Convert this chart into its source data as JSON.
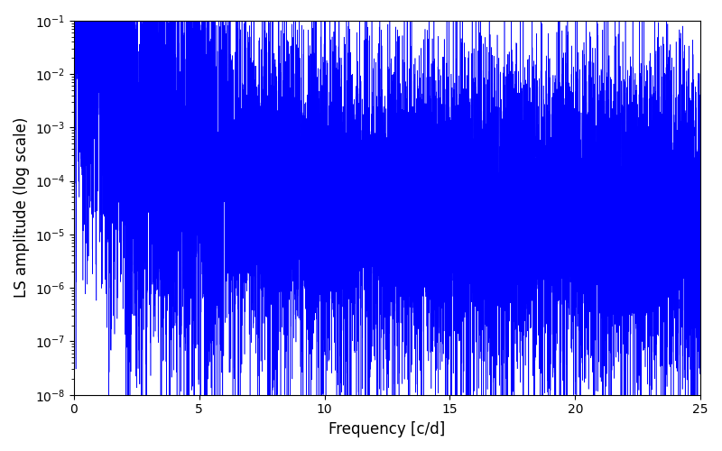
{
  "xlabel": "Frequency [c/d]",
  "ylabel": "LS amplitude (log scale)",
  "line_color": "#0000FF",
  "xlim": [
    0,
    25
  ],
  "ylim_log": [
    -8,
    -1
  ],
  "background_color": "#ffffff",
  "figsize": [
    8.0,
    5.0
  ],
  "dpi": 100,
  "seed": 77,
  "freq_max": 25.0,
  "linewidth": 0.4,
  "xlabel_fontsize": 12,
  "ylabel_fontsize": 12
}
